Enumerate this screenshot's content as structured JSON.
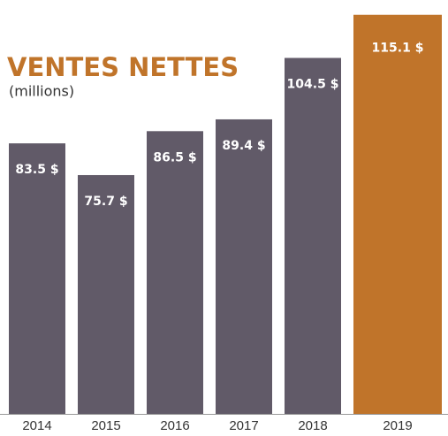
{
  "chart_data": {
    "type": "bar",
    "title": "VENTES NETTES",
    "subtitle": "(millions)",
    "categories": [
      "2014",
      "2015",
      "2016",
      "2017",
      "2018",
      "2019"
    ],
    "values": [
      83.5,
      75.7,
      86.5,
      89.4,
      104.5,
      115.1
    ],
    "value_labels": [
      "83.5 $",
      "75.7 $",
      "86.5 $",
      "89.4 $",
      "104.5 $",
      "115.1 $"
    ],
    "colors": [
      "#615a68",
      "#615a68",
      "#615a68",
      "#615a68",
      "#615a68",
      "#c0742a"
    ],
    "ylim": [
      17,
      117
    ]
  }
}
